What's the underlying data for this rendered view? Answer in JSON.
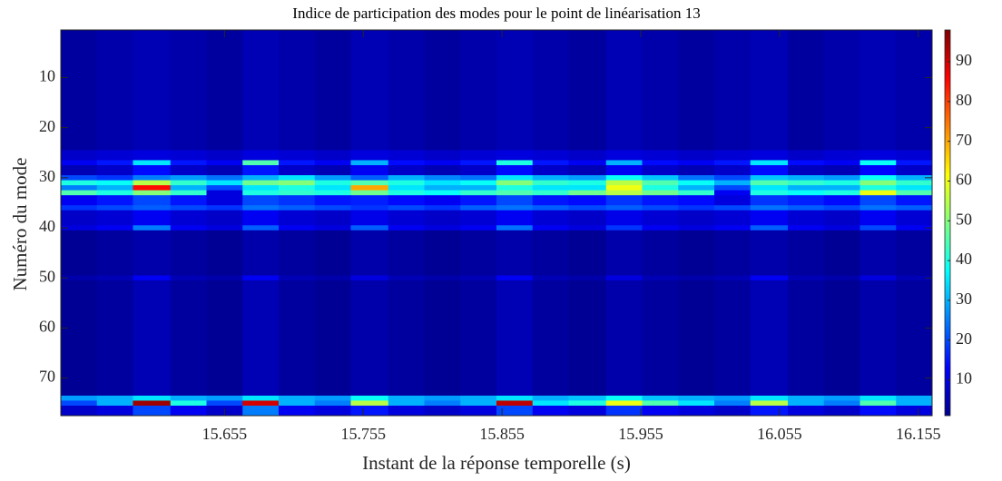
{
  "chart_data": {
    "type": "heatmap",
    "title": "Indice de participation des modes pour le point de linéarisation 13",
    "x_label": "Instant de la réponse temporelle (s)",
    "y_label": "Numéro du mode",
    "xbins": [
      15.537,
      15.563,
      15.589,
      15.616,
      15.642,
      15.668,
      15.694,
      15.72,
      15.746,
      15.773,
      15.799,
      15.825,
      15.851,
      15.877,
      15.903,
      15.93,
      15.956,
      15.982,
      16.008,
      16.034,
      16.061,
      16.087,
      16.113,
      16.139,
      16.165
    ],
    "ybins": [
      0.5,
      24.5,
      26.5,
      27.5,
      29.5,
      30.5,
      31.5,
      32.5,
      33.5,
      35.5,
      36.5,
      39.5,
      40.5,
      49.5,
      50.5,
      73.5,
      74.5,
      75.5,
      77.5
    ],
    "values": [
      [
        4,
        5,
        6,
        5,
        4,
        6,
        5,
        4,
        6,
        5,
        4,
        5,
        6,
        5,
        4,
        6,
        5,
        4,
        5,
        6,
        4,
        5,
        6,
        5
      ],
      [
        8,
        9,
        10,
        9,
        8,
        10,
        9,
        8,
        10,
        9,
        8,
        9,
        10,
        9,
        8,
        10,
        9,
        8,
        9,
        10,
        8,
        9,
        10,
        9
      ],
      [
        12,
        15,
        35,
        15,
        12,
        45,
        15,
        12,
        30,
        14,
        12,
        15,
        40,
        15,
        12,
        30,
        14,
        12,
        15,
        35,
        14,
        12,
        38,
        15
      ],
      [
        6,
        8,
        14,
        8,
        6,
        15,
        8,
        6,
        12,
        8,
        6,
        8,
        14,
        8,
        6,
        12,
        8,
        6,
        8,
        14,
        7,
        6,
        13,
        8
      ],
      [
        20,
        18,
        25,
        28,
        24,
        30,
        35,
        28,
        22,
        30,
        26,
        24,
        35,
        30,
        28,
        38,
        32,
        24,
        20,
        32,
        30,
        28,
        38,
        30
      ],
      [
        40,
        38,
        55,
        42,
        35,
        48,
        50,
        40,
        45,
        40,
        35,
        38,
        50,
        42,
        40,
        55,
        45,
        38,
        30,
        45,
        42,
        40,
        50,
        42
      ],
      [
        25,
        30,
        85,
        30,
        20,
        35,
        40,
        35,
        70,
        35,
        30,
        30,
        40,
        35,
        35,
        60,
        40,
        30,
        20,
        35,
        30,
        30,
        40,
        35
      ],
      [
        45,
        40,
        50,
        42,
        10,
        40,
        42,
        40,
        48,
        40,
        38,
        42,
        45,
        42,
        48,
        55,
        48,
        42,
        12,
        40,
        38,
        40,
        60,
        45
      ],
      [
        12,
        15,
        20,
        15,
        10,
        20,
        18,
        15,
        16,
        14,
        12,
        15,
        20,
        15,
        14,
        18,
        15,
        14,
        10,
        18,
        16,
        14,
        20,
        15
      ],
      [
        18,
        20,
        22,
        20,
        18,
        24,
        22,
        20,
        18,
        20,
        18,
        22,
        24,
        22,
        20,
        22,
        20,
        18,
        20,
        24,
        22,
        20,
        24,
        22
      ],
      [
        8,
        9,
        12,
        9,
        8,
        12,
        9,
        8,
        11,
        9,
        8,
        9,
        12,
        9,
        8,
        11,
        9,
        8,
        9,
        12,
        9,
        8,
        12,
        9
      ],
      [
        10,
        12,
        25,
        12,
        10,
        22,
        12,
        10,
        22,
        12,
        10,
        12,
        24,
        12,
        10,
        18,
        12,
        10,
        12,
        22,
        12,
        10,
        20,
        12
      ],
      [
        3,
        4,
        5,
        4,
        3,
        5,
        4,
        3,
        5,
        4,
        3,
        4,
        5,
        4,
        3,
        5,
        4,
        3,
        4,
        5,
        4,
        3,
        5,
        4
      ],
      [
        5,
        6,
        12,
        6,
        5,
        12,
        6,
        5,
        10,
        6,
        5,
        6,
        12,
        6,
        5,
        10,
        6,
        5,
        6,
        12,
        6,
        5,
        10,
        6
      ],
      [
        3,
        4,
        6,
        4,
        3,
        6,
        4,
        3,
        5,
        4,
        3,
        4,
        6,
        4,
        3,
        5,
        4,
        3,
        4,
        6,
        4,
        3,
        5,
        4
      ],
      [
        28,
        30,
        35,
        30,
        28,
        35,
        30,
        28,
        38,
        30,
        28,
        30,
        35,
        30,
        32,
        38,
        32,
        30,
        28,
        35,
        30,
        28,
        35,
        30
      ],
      [
        20,
        30,
        95,
        40,
        20,
        90,
        30,
        25,
        55,
        30,
        25,
        30,
        92,
        35,
        40,
        60,
        45,
        35,
        25,
        55,
        30,
        25,
        45,
        30
      ],
      [
        8,
        10,
        20,
        12,
        8,
        25,
        12,
        10,
        15,
        10,
        8,
        10,
        20,
        12,
        10,
        18,
        12,
        10,
        8,
        15,
        10,
        8,
        14,
        10
      ]
    ],
    "xlim": [
      15.537,
      16.165
    ],
    "ylim": [
      77.5,
      0.5
    ],
    "xticks": [
      15.655,
      15.755,
      15.855,
      15.955,
      16.055,
      16.155
    ],
    "yticks": [
      10,
      20,
      30,
      40,
      50,
      60,
      70
    ],
    "colormap": "jet",
    "clim": [
      1,
      98
    ],
    "cticks": [
      10,
      20,
      30,
      40,
      50,
      60,
      70,
      80,
      90
    ]
  }
}
